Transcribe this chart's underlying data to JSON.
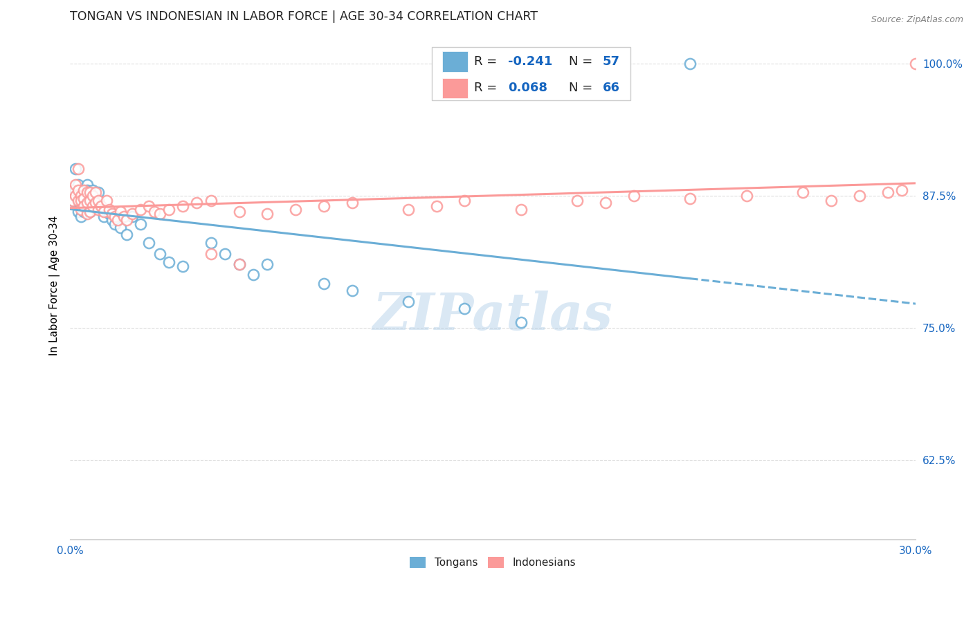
{
  "title": "TONGAN VS INDONESIAN IN LABOR FORCE | AGE 30-34 CORRELATION CHART",
  "source": "Source: ZipAtlas.com",
  "ylabel": "In Labor Force | Age 30-34",
  "xlim": [
    0.0,
    0.3
  ],
  "ylim": [
    0.55,
    1.03
  ],
  "xticks": [
    0.0,
    0.05,
    0.1,
    0.15,
    0.2,
    0.25,
    0.3
  ],
  "yticks": [
    0.625,
    0.75,
    0.875,
    1.0
  ],
  "yticklabels": [
    "62.5%",
    "75.0%",
    "87.5%",
    "100.0%"
  ],
  "color_tongan": "#6baed6",
  "color_indonesian": "#fb9a99",
  "color_blue_text": "#1565C0",
  "watermark": "ZIPatlas",
  "background_color": "#ffffff",
  "grid_color": "#dddddd",
  "tongan_x": [
    0.001,
    0.001,
    0.002,
    0.002,
    0.002,
    0.003,
    0.003,
    0.003,
    0.003,
    0.003,
    0.004,
    0.004,
    0.004,
    0.004,
    0.005,
    0.005,
    0.005,
    0.005,
    0.005,
    0.006,
    0.006,
    0.006,
    0.006,
    0.007,
    0.007,
    0.007,
    0.008,
    0.008,
    0.009,
    0.009,
    0.01,
    0.01,
    0.011,
    0.012,
    0.013,
    0.014,
    0.015,
    0.016,
    0.018,
    0.02,
    0.022,
    0.025,
    0.028,
    0.032,
    0.035,
    0.04,
    0.05,
    0.055,
    0.06,
    0.065,
    0.07,
    0.09,
    0.1,
    0.12,
    0.14,
    0.16,
    0.22
  ],
  "tongan_y": [
    0.88,
    0.87,
    0.88,
    0.875,
    0.9,
    0.875,
    0.88,
    0.885,
    0.87,
    0.86,
    0.875,
    0.87,
    0.865,
    0.855,
    0.88,
    0.875,
    0.87,
    0.86,
    0.865,
    0.885,
    0.88,
    0.87,
    0.862,
    0.875,
    0.87,
    0.86,
    0.88,
    0.87,
    0.875,
    0.865,
    0.878,
    0.87,
    0.862,
    0.855,
    0.86,
    0.858,
    0.852,
    0.848,
    0.845,
    0.838,
    0.855,
    0.848,
    0.83,
    0.82,
    0.812,
    0.808,
    0.83,
    0.82,
    0.81,
    0.8,
    0.81,
    0.792,
    0.785,
    0.775,
    0.768,
    0.755,
    1.0
  ],
  "indonesian_x": [
    0.001,
    0.001,
    0.002,
    0.002,
    0.003,
    0.003,
    0.003,
    0.004,
    0.004,
    0.004,
    0.005,
    0.005,
    0.005,
    0.006,
    0.006,
    0.006,
    0.007,
    0.007,
    0.007,
    0.008,
    0.008,
    0.009,
    0.009,
    0.01,
    0.01,
    0.011,
    0.012,
    0.013,
    0.014,
    0.015,
    0.016,
    0.017,
    0.018,
    0.019,
    0.02,
    0.022,
    0.025,
    0.028,
    0.03,
    0.032,
    0.035,
    0.04,
    0.045,
    0.05,
    0.06,
    0.07,
    0.08,
    0.09,
    0.1,
    0.12,
    0.13,
    0.14,
    0.16,
    0.18,
    0.19,
    0.2,
    0.22,
    0.24,
    0.26,
    0.27,
    0.28,
    0.29,
    0.295,
    0.3,
    0.05,
    0.06
  ],
  "indonesian_y": [
    0.88,
    0.87,
    0.885,
    0.875,
    0.88,
    0.87,
    0.9,
    0.875,
    0.87,
    0.862,
    0.88,
    0.872,
    0.865,
    0.878,
    0.868,
    0.858,
    0.878,
    0.87,
    0.86,
    0.875,
    0.865,
    0.878,
    0.868,
    0.87,
    0.862,
    0.865,
    0.86,
    0.87,
    0.862,
    0.858,
    0.855,
    0.852,
    0.86,
    0.855,
    0.852,
    0.858,
    0.862,
    0.865,
    0.86,
    0.858,
    0.862,
    0.865,
    0.868,
    0.87,
    0.86,
    0.858,
    0.862,
    0.865,
    0.868,
    0.862,
    0.865,
    0.87,
    0.862,
    0.87,
    0.868,
    0.875,
    0.872,
    0.875,
    0.878,
    0.87,
    0.875,
    0.878,
    0.88,
    1.0,
    0.82,
    0.81
  ],
  "title_fontsize": 12.5,
  "label_fontsize": 11,
  "tick_fontsize": 11,
  "source_fontsize": 9
}
